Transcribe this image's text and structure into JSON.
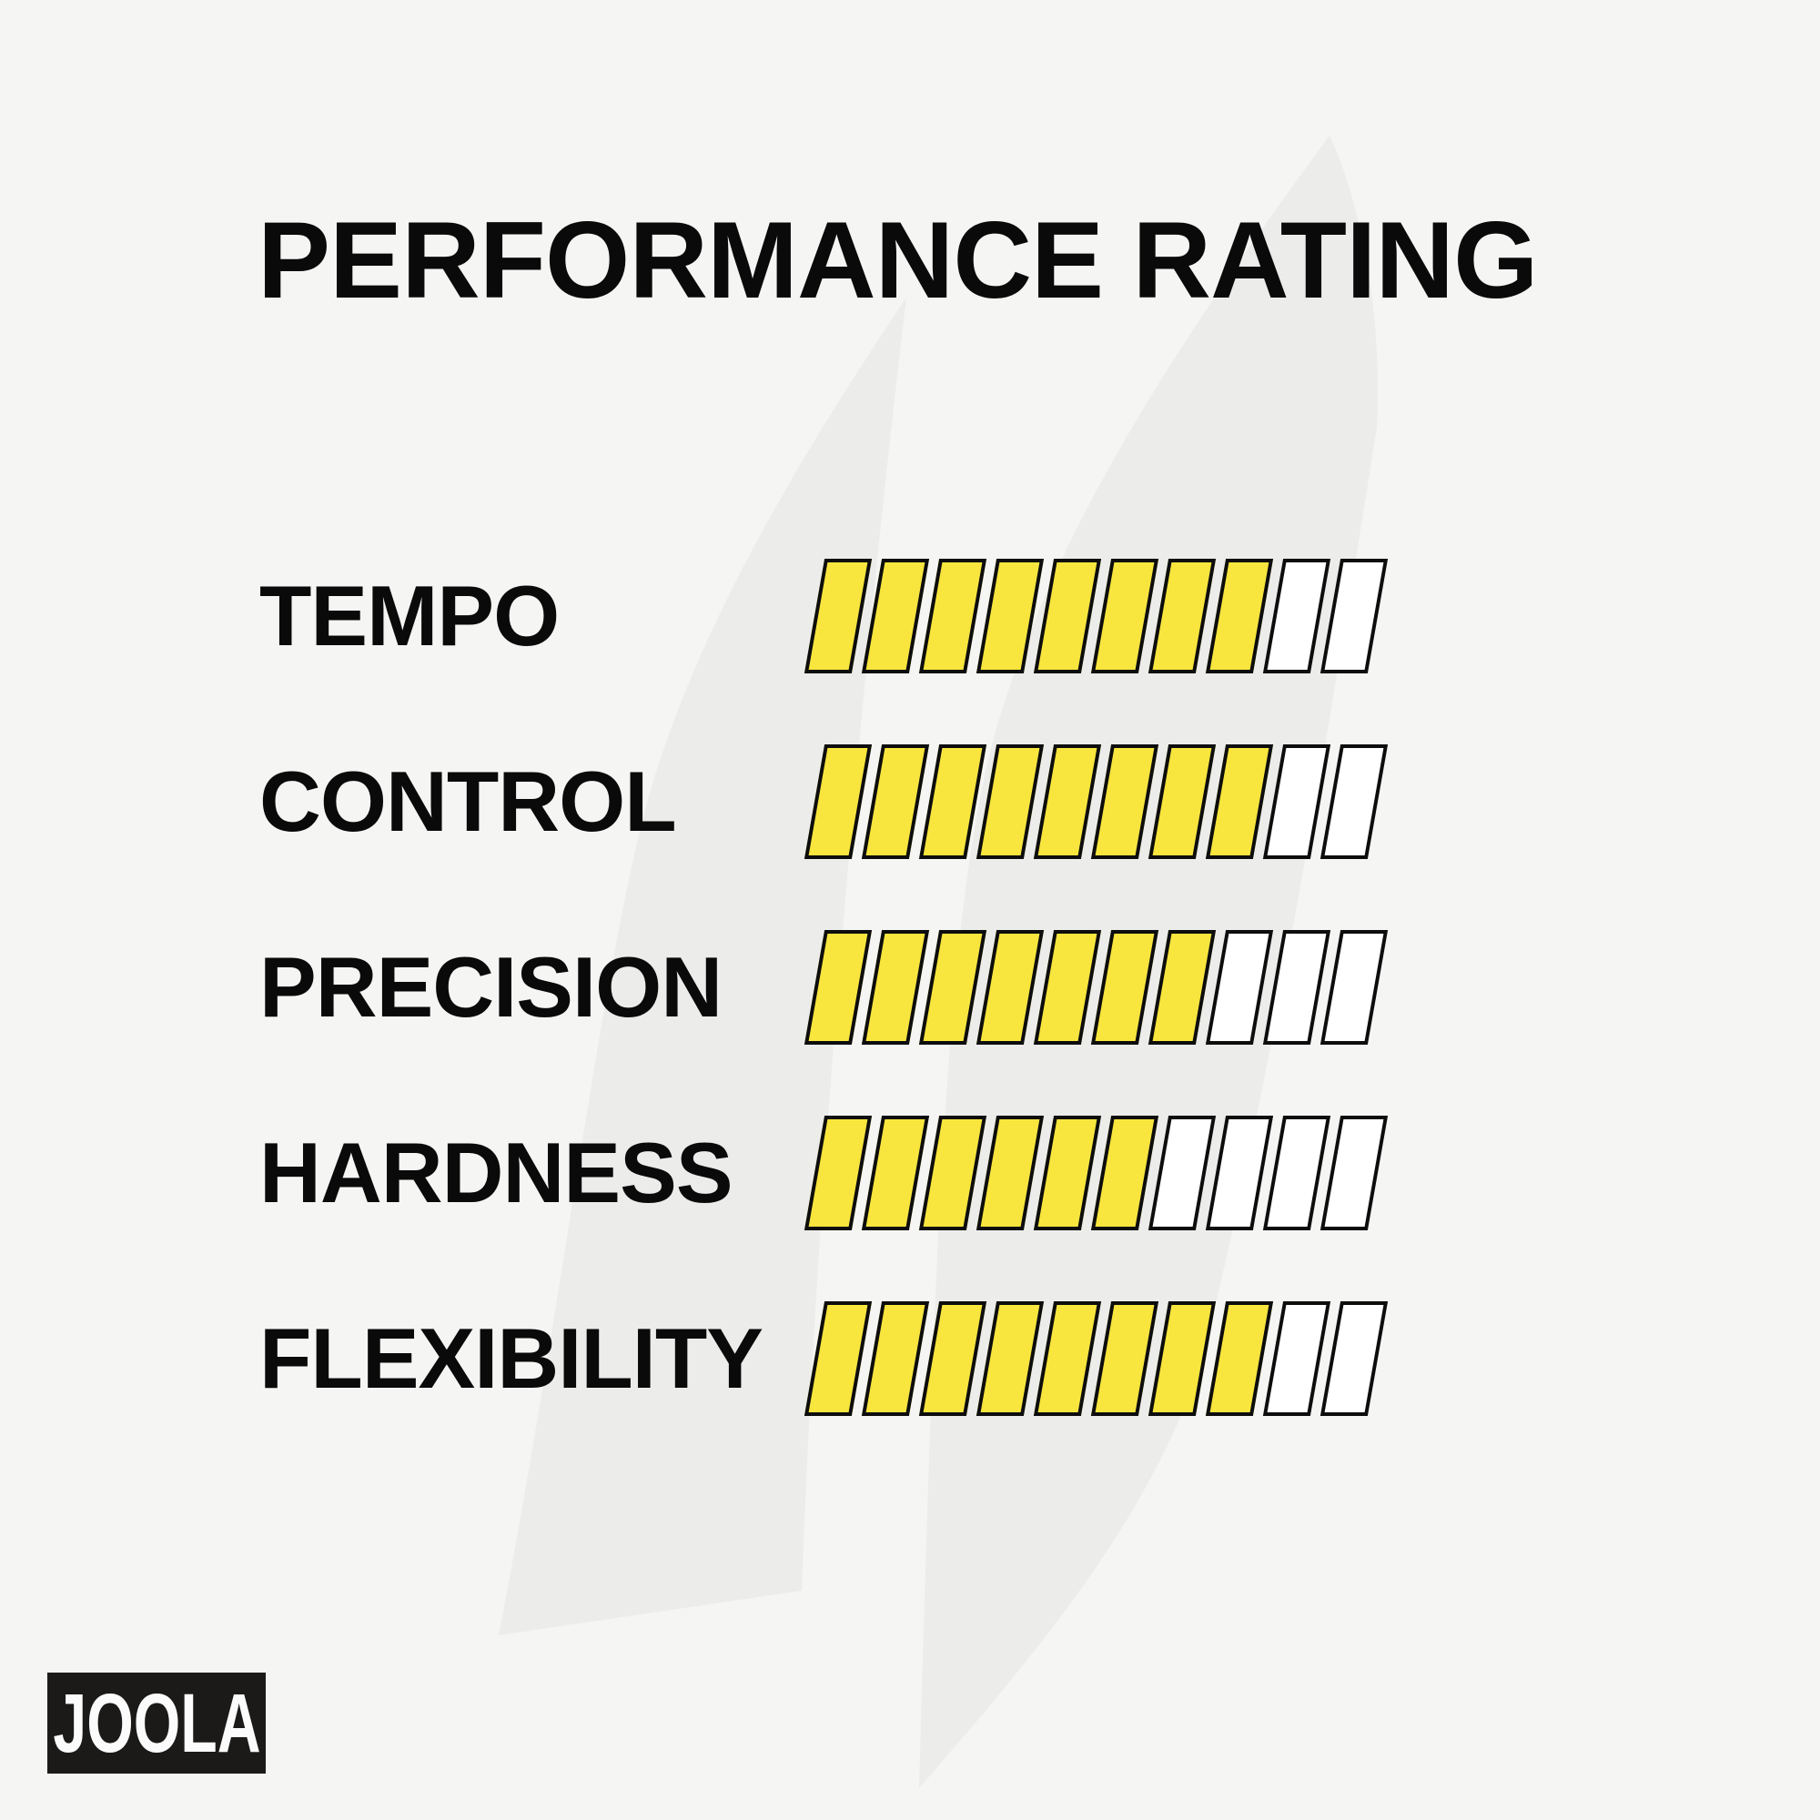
{
  "page": {
    "background_color": "#F5F5F4",
    "watermark_color": "#ECECEB",
    "text_color": "#0A0A0A",
    "brand": {
      "logo_text": "JOOLA",
      "logo_bg": "#1B1A18",
      "logo_text_color": "#FBFBFB"
    }
  },
  "chart_data": {
    "type": "bar",
    "style": "segmented-slanted-parallelogram-bars",
    "orientation": "horizontal",
    "title": "PERFORMANCE RATING",
    "categories": [
      "TEMPO",
      "CONTROL",
      "PRECISION",
      "HARDNESS",
      "FLEXIBILITY"
    ],
    "values": [
      8,
      8,
      7,
      6,
      8
    ],
    "max_segments": 10,
    "segment_colors": {
      "filled": "#F8E53E",
      "empty": "#FFFFFF",
      "border": "#0D0D0D"
    },
    "legend_position": "none",
    "grid": false
  }
}
